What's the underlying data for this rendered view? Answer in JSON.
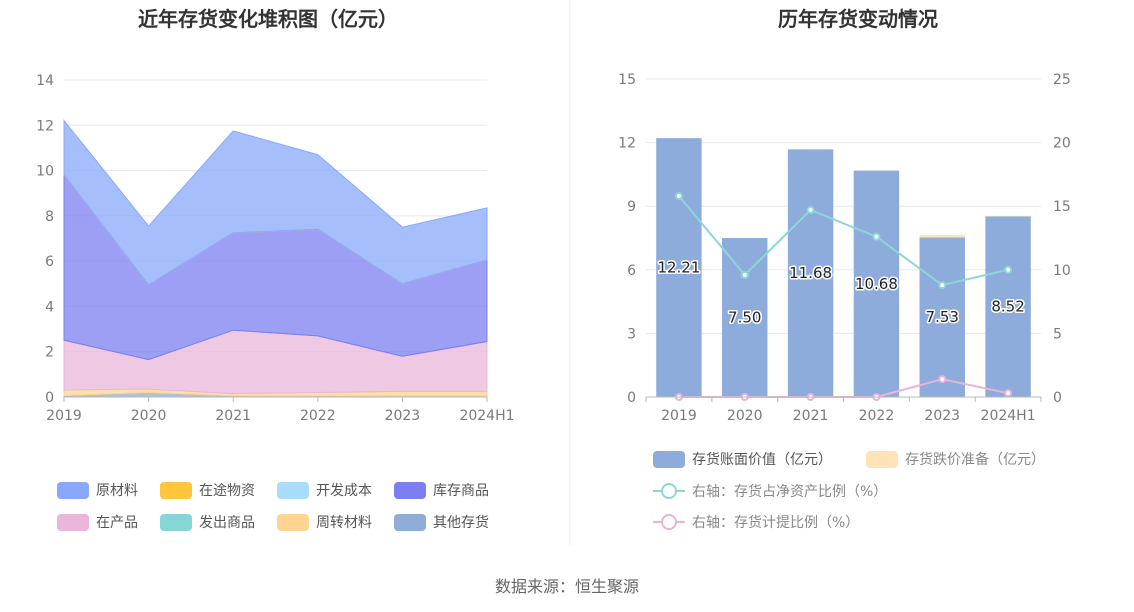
{
  "source": "数据来源：恒生聚源",
  "chart_data": [
    {
      "type": "area",
      "title": "近年存货变化堆积图（亿元）",
      "categories": [
        "2019",
        "2020",
        "2021",
        "2022",
        "2023",
        "2024H1"
      ],
      "ylim": [
        0,
        14
      ],
      "yticks": [
        0,
        2,
        4,
        6,
        8,
        10,
        12,
        14
      ],
      "grid": true,
      "legend_position": "bottom",
      "series": [
        {
          "name": "原材料",
          "color": "#8aa8fb",
          "values": [
            2.4,
            2.6,
            4.5,
            3.3,
            2.5,
            2.3
          ]
        },
        {
          "name": "在途物资",
          "color": "#ffc53d",
          "values": [
            0.0,
            0.0,
            0.0,
            0.0,
            0.0,
            0.0
          ]
        },
        {
          "name": "开发成本",
          "color": "#a8dcf8",
          "values": [
            0.0,
            0.0,
            0.0,
            0.0,
            0.0,
            0.0
          ]
        },
        {
          "name": "库存商品",
          "color": "#7b7ff0",
          "values": [
            7.3,
            3.3,
            4.3,
            4.7,
            3.2,
            3.6
          ]
        },
        {
          "name": "在产品",
          "color": "#eab6d9",
          "values": [
            2.2,
            1.3,
            2.8,
            2.5,
            1.55,
            2.2
          ]
        },
        {
          "name": "发出商品",
          "color": "#86d6d8",
          "values": [
            0.0,
            0.0,
            0.0,
            0.0,
            0.0,
            0.0
          ]
        },
        {
          "name": "周转材料",
          "color": "#ffd591",
          "values": [
            0.25,
            0.15,
            0.1,
            0.15,
            0.2,
            0.2
          ]
        },
        {
          "name": "其他存货",
          "color": "#8fadd6",
          "values": [
            0.06,
            0.2,
            0.05,
            0.05,
            0.05,
            0.05
          ]
        }
      ]
    },
    {
      "type": "bar",
      "title": "历年存货变动情况",
      "categories": [
        "2019",
        "2020",
        "2021",
        "2022",
        "2023",
        "2024H1"
      ],
      "ylim": [
        0,
        15
      ],
      "yticks": [
        0,
        3,
        6,
        9,
        12,
        15
      ],
      "y2lim": [
        0,
        25
      ],
      "y2ticks": [
        0,
        5,
        10,
        15,
        20,
        25
      ],
      "grid": true,
      "legend_position": "bottom",
      "series": [
        {
          "name": "存货账面价值（亿元）",
          "kind": "bar",
          "axis": "left",
          "color": "#8eacdb",
          "values": [
            12.21,
            7.5,
            11.68,
            10.68,
            7.53,
            8.52
          ],
          "labels": [
            "12.21",
            "7.50",
            "11.68",
            "10.68",
            "7.53",
            "8.52"
          ]
        },
        {
          "name": "存货跌价准备（亿元）",
          "kind": "bar-stack",
          "axis": "left",
          "color": "#ffe3b8",
          "values": [
            0.0,
            0.0,
            0.0,
            0.0,
            0.12,
            0.03
          ]
        },
        {
          "name": "右轴：存货占净资产比例（%）",
          "kind": "line",
          "axis": "right",
          "color": "#8dd6d6",
          "values": [
            15.8,
            9.6,
            14.7,
            12.6,
            8.8,
            10.0
          ]
        },
        {
          "name": "右轴：存货计提比例（%）",
          "kind": "line",
          "axis": "right",
          "color": "#e8b4d8",
          "values": [
            0.0,
            0.0,
            0.0,
            0.0,
            1.4,
            0.3
          ]
        }
      ]
    }
  ]
}
